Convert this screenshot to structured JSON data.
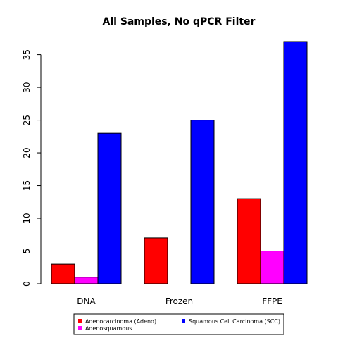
{
  "chart_data": {
    "type": "bar",
    "title": "All Samples, No qPCR Filter",
    "xlabel": "",
    "ylabel": "",
    "categories": [
      "DNA",
      "Frozen",
      "FFPE"
    ],
    "series": [
      {
        "name": "Adenocarcinoma (Adeno)",
        "color": "#ff0000",
        "values": [
          3,
          7,
          13
        ]
      },
      {
        "name": "Adenosquamous",
        "color": "#ff00ff",
        "values": [
          1,
          0,
          5
        ]
      },
      {
        "name": "Squamous Cell Carcinoma (SCC)",
        "color": "#0000ff",
        "values": [
          23,
          25,
          37
        ]
      }
    ],
    "yticks": [
      0,
      5,
      10,
      15,
      20,
      25,
      30,
      35
    ],
    "ylim": [
      0,
      37
    ],
    "legend_position": "bottom-center"
  }
}
